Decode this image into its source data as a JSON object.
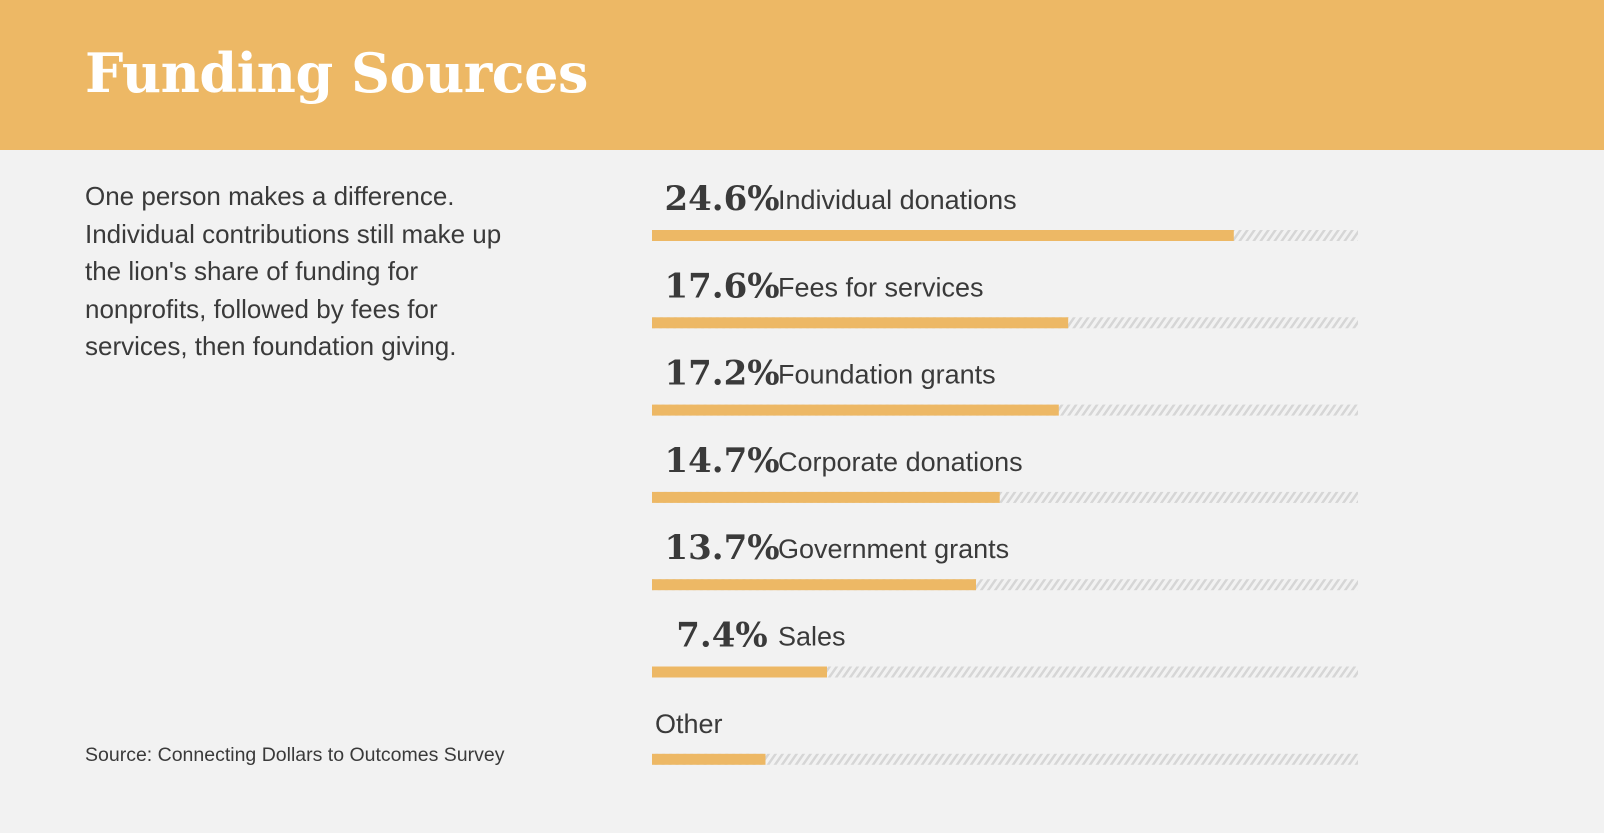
{
  "header": {
    "title": "Funding Sources"
  },
  "description": "One person makes a difference. Individual contributions still make up the lion's share of funding for nonprofits, followed by fees for services, then foundation giving.",
  "source": "Source: Connecting Dollars to Outcomes Survey",
  "colors": {
    "accent": "#edb865",
    "background": "#f2f2f2",
    "text": "#3a3a3a",
    "track_hatch": "#d9d9d9"
  },
  "chart_data": {
    "type": "bar",
    "orientation": "horizontal",
    "title": "Funding Sources",
    "categories": [
      "Individual donations",
      "Fees for services",
      "Foundation grants",
      "Corporate donations",
      "Government grants",
      "Sales",
      "Other"
    ],
    "value_labels": [
      "24.6%",
      "17.6%",
      "17.2%",
      "14.7%",
      "13.7%",
      "7.4%",
      ""
    ],
    "values": [
      24.6,
      17.6,
      17.2,
      14.7,
      13.7,
      7.4,
      4.8
    ],
    "xlim": [
      0,
      30
    ],
    "unit": "%",
    "grid": false,
    "legend": "none"
  }
}
